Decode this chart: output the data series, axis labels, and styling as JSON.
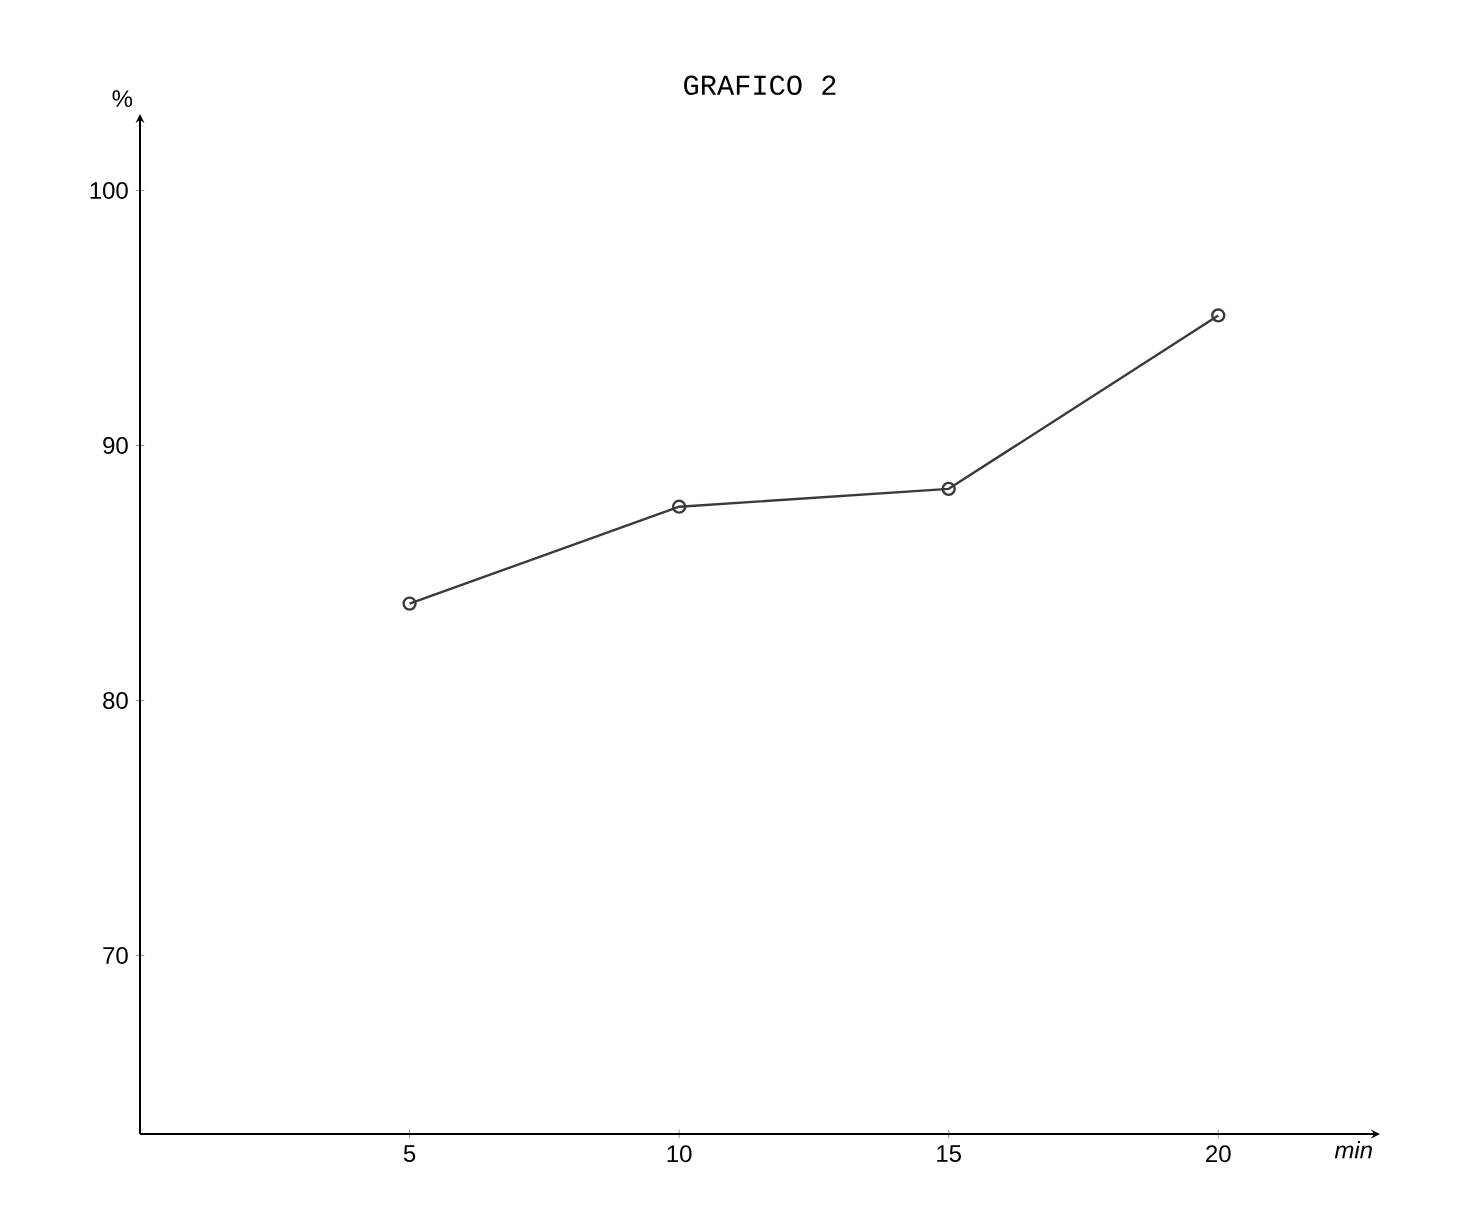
{
  "chart_data": {
    "type": "line",
    "title": "GRAFICO 2",
    "xlabel": "min",
    "ylabel": "%",
    "x": [
      5,
      10,
      15,
      20
    ],
    "series": [
      {
        "color": "#3a3a3a",
        "values": [
          83.8,
          87.6,
          88.3,
          95.1
        ]
      }
    ],
    "xlim": [
      0,
      23
    ],
    "ylim": [
      63,
      103
    ],
    "xticks": [
      5,
      10,
      15,
      20
    ],
    "yticks": [
      70,
      80,
      90,
      100
    ],
    "marker": "circle",
    "line_style": "solid"
  }
}
